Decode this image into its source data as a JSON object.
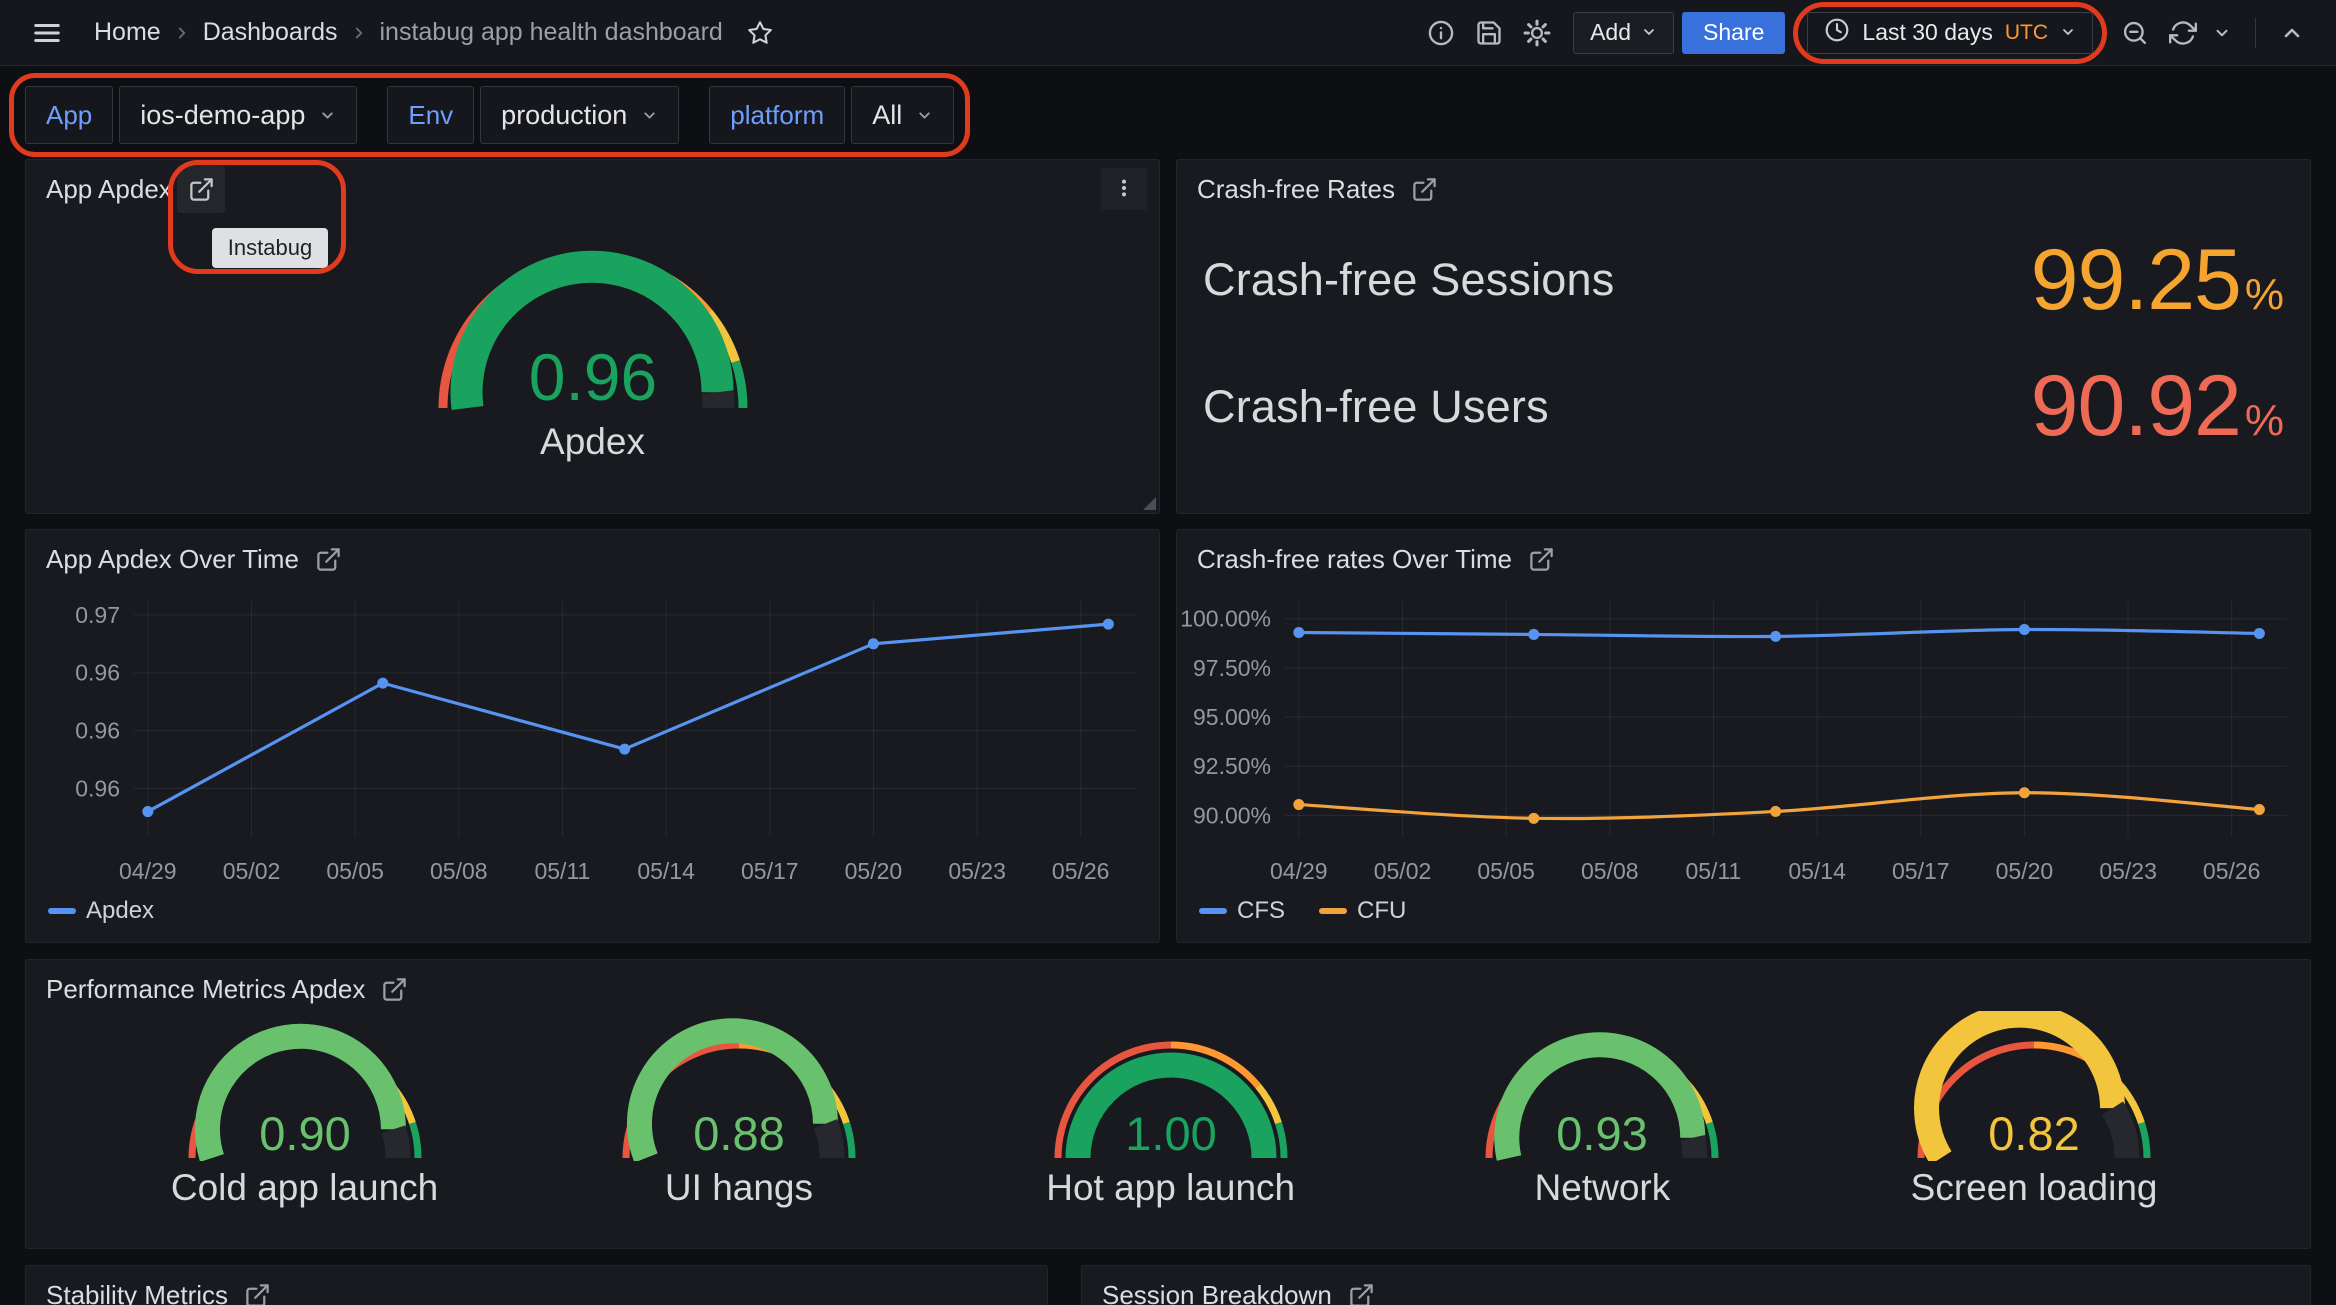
{
  "nav": {
    "breadcrumb": {
      "home": "Home",
      "dashboards": "Dashboards",
      "title": "instabug app health dashboard"
    },
    "add_label": "Add",
    "share_label": "Share",
    "time_picker": {
      "label": "Last 30 days",
      "timezone": "UTC"
    }
  },
  "filters": [
    {
      "label": "App",
      "value": "ios-demo-app"
    },
    {
      "label": "Env",
      "value": "production"
    },
    {
      "label": "platform",
      "value": "All"
    }
  ],
  "tooltip": {
    "text": "Instabug"
  },
  "annotations": {
    "color": "#e03b1e",
    "targets": [
      "time-range-picker",
      "template-variable-filters",
      "app-apdex-panel-link"
    ]
  },
  "panels": {
    "app_apdex": {
      "title": "App Apdex"
    },
    "crash_free_rates": {
      "title": "Crash-free Rates",
      "rows": [
        {
          "label": "Crash-free Sessions",
          "value": "99.25",
          "unit": "%",
          "color": "#f5a52f"
        },
        {
          "label": "Crash-free Users",
          "value": "90.92",
          "unit": "%",
          "color": "#ef6a54"
        }
      ]
    },
    "apdex_over_time": {
      "title": "App Apdex Over Time"
    },
    "crash_over_time": {
      "title": "Crash-free rates Over Time"
    },
    "performance": {
      "title": "Performance Metrics Apdex"
    },
    "stability": {
      "title": "Stability Metrics"
    },
    "session": {
      "title": "Session Breakdown"
    }
  },
  "gauge_thresholds": [
    {
      "to": 0.5,
      "color": "#e8563f"
    },
    {
      "to": 0.78,
      "color": "#ff9830"
    },
    {
      "to": 0.9,
      "color": "#f3c53d"
    },
    {
      "to": 1.0,
      "color": "#1aa35e"
    }
  ],
  "gauge_track_color": "#26282e",
  "chart_data": [
    {
      "type": "gauge",
      "title": "App Apdex",
      "min": 0,
      "max": 1,
      "gauges": [
        {
          "label": "Apdex",
          "value": 0.96,
          "display": "0.96",
          "color": "#1aa35e"
        }
      ]
    },
    {
      "type": "line",
      "title": "App Apdex Over Time",
      "xlabel": "",
      "ylabel": "",
      "x_tick_days": [
        0,
        3,
        6,
        9,
        12,
        15,
        18,
        21,
        24,
        27
      ],
      "x_tick_labels": [
        "04/29",
        "05/02",
        "05/05",
        "05/08",
        "05/11",
        "05/14",
        "05/17",
        "05/20",
        "05/23",
        "05/26"
      ],
      "y_tick_values": [
        0.97,
        0.965,
        0.96,
        0.955
      ],
      "y_tick_labels": [
        "0.97",
        "0.96",
        "0.96",
        "0.96"
      ],
      "ylim": [
        0.9508,
        0.9712
      ],
      "xlim": [
        -0.4,
        28.6
      ],
      "smooth": false,
      "grid": true,
      "legend_position": "bottom",
      "series": [
        {
          "name": "Apdex",
          "color": "#5794f2",
          "x": [
            0,
            6.8,
            13.8,
            21,
            27.8
          ],
          "values": [
            0.953,
            0.9641,
            0.9584,
            0.9675,
            0.9692
          ]
        }
      ]
    },
    {
      "type": "line",
      "title": "Crash-free rates Over Time",
      "xlabel": "",
      "ylabel": "",
      "x_tick_days": [
        0,
        3,
        6,
        9,
        12,
        15,
        18,
        21,
        24,
        27
      ],
      "x_tick_labels": [
        "04/29",
        "05/02",
        "05/05",
        "05/08",
        "05/11",
        "05/14",
        "05/17",
        "05/20",
        "05/23",
        "05/26"
      ],
      "y_tick_values": [
        100,
        97.5,
        95,
        92.5,
        90
      ],
      "y_tick_labels": [
        "100.00%",
        "97.50%",
        "95.00%",
        "92.50%",
        "90.00%"
      ],
      "ylim": [
        88.9,
        100.9
      ],
      "xlim": [
        -0.4,
        28.6
      ],
      "smooth": true,
      "grid": true,
      "legend_position": "bottom",
      "series": [
        {
          "name": "CFS",
          "color": "#5794f2",
          "x": [
            0,
            6.8,
            13.8,
            21,
            27.8
          ],
          "values": [
            99.3,
            99.2,
            99.1,
            99.45,
            99.25
          ]
        },
        {
          "name": "CFU",
          "color": "#f2a33c",
          "x": [
            0,
            6.8,
            13.8,
            21,
            27.8
          ],
          "values": [
            90.55,
            89.85,
            90.2,
            91.15,
            90.3
          ]
        }
      ]
    },
    {
      "type": "gauge",
      "title": "Performance Metrics Apdex",
      "min": 0,
      "max": 1,
      "gauges": [
        {
          "label": "Cold app launch",
          "value": 0.9,
          "display": "0.90",
          "color": "#69c16e"
        },
        {
          "label": "UI hangs",
          "value": 0.88,
          "display": "0.88",
          "color": "#69c16e"
        },
        {
          "label": "Hot app launch",
          "value": 1.0,
          "display": "1.00",
          "color": "#1aa35e"
        },
        {
          "label": "Network",
          "value": 0.93,
          "display": "0.93",
          "color": "#69c16e"
        },
        {
          "label": "Screen loading",
          "value": 0.82,
          "display": "0.82",
          "color": "#f3c53d"
        }
      ]
    }
  ]
}
